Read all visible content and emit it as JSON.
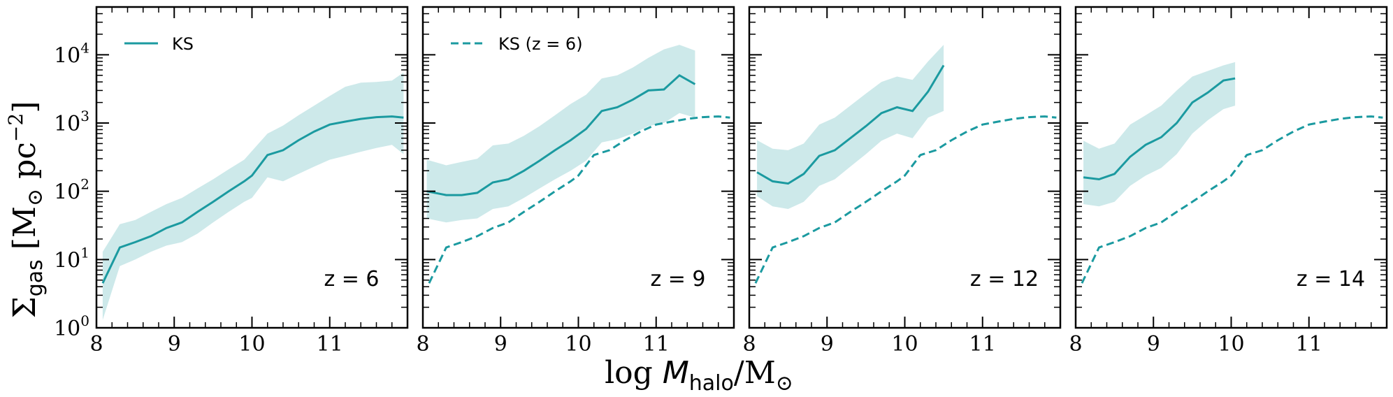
{
  "colors": {
    "line": "#1b9aa0",
    "band": "#cde9ea",
    "axis": "#000000"
  },
  "chart_data": {
    "type": "line",
    "x_range": [
      8,
      12
    ],
    "y_range_log10": [
      0,
      4.7
    ],
    "x_ticks": [
      8,
      9,
      10,
      11
    ],
    "x_tick_labels": [
      "8",
      "9",
      "10",
      "11"
    ],
    "y_ticks_log10": [
      0,
      1,
      2,
      3,
      4
    ],
    "y_tick_labels": [
      {
        "base": "10",
        "exp": "0"
      },
      {
        "base": "10",
        "exp": "1"
      },
      {
        "base": "10",
        "exp": "2"
      },
      {
        "base": "10",
        "exp": "3"
      },
      {
        "base": "10",
        "exp": "4"
      }
    ],
    "xlabel": {
      "prefix": "log ",
      "var": "M",
      "sub": "halo",
      "mid": "/M",
      "sub2": "⊙"
    },
    "ylabel": {
      "sym": "Σ",
      "sub": "gas",
      "unit": " [M",
      "unit_sub": "⊙",
      "unit2": " pc",
      "exp": "−2",
      "close": "]"
    },
    "panels": [
      {
        "redshift_label": "z = 6",
        "z_value": "6",
        "legend": {
          "label": "KS",
          "style": "solid"
        },
        "x": [
          8.08,
          8.3,
          8.5,
          8.7,
          8.9,
          9.1,
          9.3,
          9.5,
          9.7,
          9.9,
          10.0,
          10.2,
          10.4,
          10.6,
          10.8,
          11.0,
          11.2,
          11.4,
          11.6,
          11.8,
          11.95
        ],
        "median": [
          4.5,
          15,
          18,
          22,
          29,
          35,
          50,
          70,
          100,
          140,
          170,
          340,
          400,
          560,
          750,
          950,
          1050,
          1150,
          1220,
          1250,
          1200
        ],
        "lower": [
          1.3,
          8,
          10,
          13,
          16,
          18,
          24,
          35,
          50,
          70,
          80,
          160,
          140,
          180,
          230,
          290,
          330,
          380,
          430,
          480,
          350
        ],
        "upper": [
          13,
          33,
          38,
          50,
          65,
          80,
          110,
          150,
          210,
          290,
          390,
          700,
          920,
          1300,
          1800,
          2500,
          3400,
          3900,
          4000,
          4200,
          5500
        ]
      },
      {
        "redshift_label": "z = 9",
        "z_value": "9",
        "legend": {
          "label": "KS (z = 6)",
          "style": "dashed"
        },
        "x": [
          8.05,
          8.3,
          8.5,
          8.7,
          8.9,
          9.1,
          9.3,
          9.5,
          9.7,
          9.9,
          10.1,
          10.3,
          10.5,
          10.7,
          10.9,
          11.1,
          11.3,
          11.5
        ],
        "median": [
          100,
          88,
          88,
          95,
          135,
          150,
          200,
          280,
          400,
          560,
          820,
          1500,
          1700,
          2200,
          3000,
          3100,
          5000,
          3700
        ],
        "lower": [
          40,
          35,
          38,
          40,
          55,
          60,
          80,
          110,
          150,
          200,
          280,
          520,
          580,
          700,
          900,
          1000,
          1400,
          1200
        ],
        "upper": [
          290,
          240,
          270,
          300,
          470,
          500,
          650,
          900,
          1300,
          1900,
          2600,
          4500,
          5000,
          6500,
          9000,
          12000,
          14000,
          11500
        ]
      },
      {
        "redshift_label": "z = 12",
        "z_value": "12",
        "legend": null,
        "x": [
          8.1,
          8.3,
          8.5,
          8.7,
          8.9,
          9.1,
          9.3,
          9.5,
          9.7,
          9.9,
          10.1,
          10.3,
          10.5
        ],
        "median": [
          190,
          140,
          130,
          180,
          330,
          400,
          600,
          900,
          1400,
          1700,
          1500,
          2900,
          7000
        ],
        "lower": [
          85,
          60,
          55,
          70,
          120,
          150,
          230,
          350,
          550,
          700,
          600,
          1200,
          1500
        ],
        "upper": [
          560,
          420,
          400,
          500,
          950,
          1200,
          1800,
          2700,
          4000,
          4800,
          4300,
          8000,
          14000
        ]
      },
      {
        "redshift_label": "z = 14",
        "z_value": "14",
        "legend": null,
        "x": [
          8.1,
          8.3,
          8.5,
          8.7,
          8.9,
          9.1,
          9.3,
          9.5,
          9.7,
          9.9,
          10.05
        ],
        "median": [
          160,
          150,
          180,
          320,
          480,
          620,
          1000,
          2000,
          2800,
          4200,
          4500
        ],
        "lower": [
          65,
          60,
          70,
          120,
          170,
          220,
          350,
          700,
          1100,
          1600,
          1800
        ],
        "upper": [
          550,
          420,
          500,
          950,
          1300,
          1800,
          3000,
          4800,
          5800,
          7000,
          7800
        ]
      }
    ]
  }
}
